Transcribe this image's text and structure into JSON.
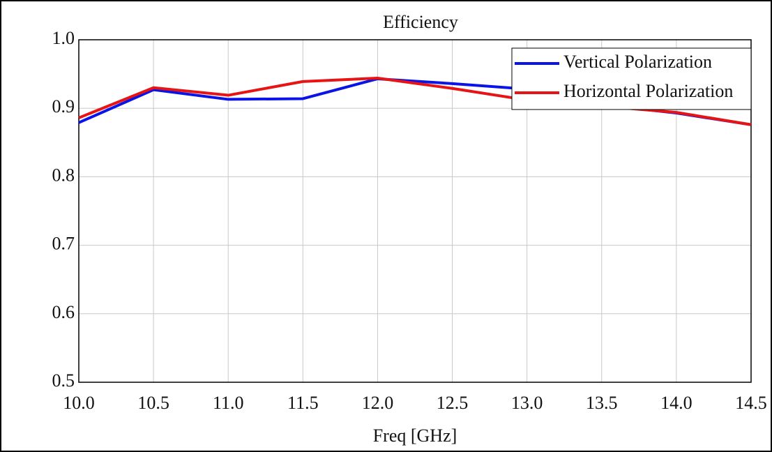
{
  "chart_data": {
    "type": "line",
    "title": "Efficiency",
    "x_label": "Freq [GHz]",
    "x": [
      10.0,
      10.5,
      11.0,
      11.5,
      12.0,
      12.5,
      13.0,
      13.5,
      14.0,
      14.5
    ],
    "series": [
      {
        "name": "Vertical Polarization",
        "color": "#0a14e6",
        "values": [
          0.879,
          0.927,
          0.913,
          0.914,
          0.943,
          0.936,
          0.928,
          0.905,
          0.893,
          0.876
        ]
      },
      {
        "name": "Horizontal Polarization",
        "color": "#e61414",
        "values": [
          0.886,
          0.93,
          0.919,
          0.939,
          0.944,
          0.929,
          0.912,
          0.903,
          0.894,
          0.876
        ]
      }
    ],
    "xlim": [
      10.0,
      14.5
    ],
    "xticks": [
      {
        "value": 10,
        "label": "10.0"
      },
      10.5,
      {
        "value": 11,
        "label": "11.0"
      },
      11.5,
      {
        "value": 12,
        "label": "12.0"
      },
      12.5,
      {
        "value": 13,
        "label": "13.0"
      },
      13.5,
      {
        "value": 14,
        "label": "14.0"
      },
      14.5
    ],
    "ylim": [
      0.5,
      1.0
    ],
    "yticks": [
      0.5,
      0.6,
      0.7,
      0.8,
      0.9,
      {
        "value": 1,
        "label": "1.0"
      }
    ],
    "grid": true,
    "legend": "upper right"
  }
}
